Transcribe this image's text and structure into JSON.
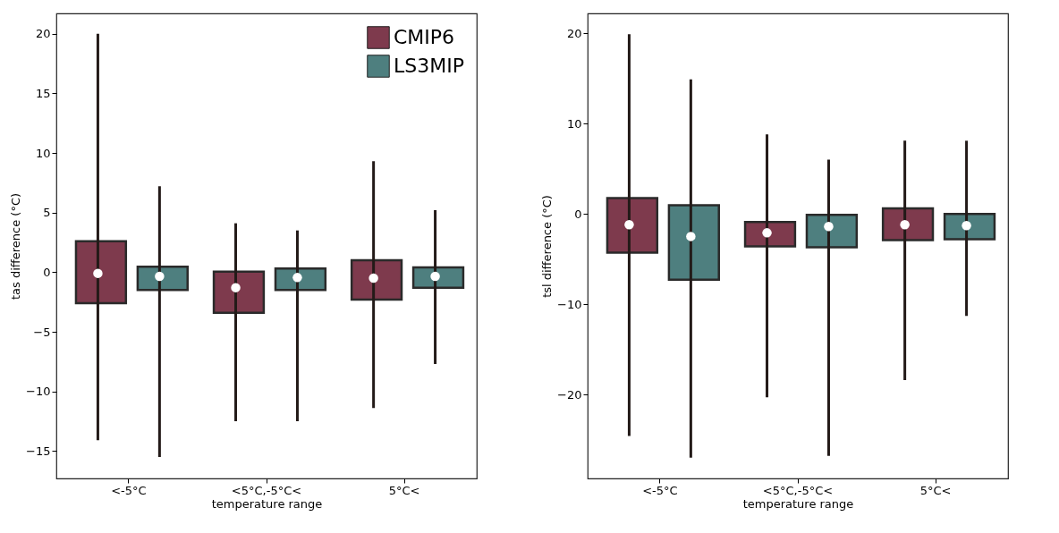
{
  "chart_data": [
    {
      "type": "box",
      "xlabel": "temperature range",
      "ylabel": "tas difference (°C)",
      "categories": [
        "<-5°C",
        "<5°C,-5°C<",
        "5°C<"
      ],
      "ylim": [
        -17.3,
        21.7
      ],
      "yticks": [
        {
          "value": -15,
          "label": "−15"
        },
        {
          "value": -10,
          "label": "−10"
        },
        {
          "value": -5,
          "label": "−5"
        },
        0,
        5,
        10,
        15,
        20
      ],
      "legend": "top right",
      "series": [
        {
          "name": "CMIP6",
          "color": "#7e3a4d",
          "boxes": [
            {
              "low": -14.1,
              "q1": -2.6,
              "median": -0.1,
              "q3": 2.6,
              "high": 20
            },
            {
              "low": -12.5,
              "q1": -3.4,
              "median": -1.3,
              "q3": 0.05,
              "high": 4.1
            },
            {
              "low": -11.4,
              "q1": -2.3,
              "median": -0.5,
              "q3": 1.0,
              "high": 9.3
            }
          ]
        },
        {
          "name": "LS3MIP",
          "color": "#4e7f7f",
          "boxes": [
            {
              "low": -15.5,
              "q1": -1.5,
              "median": -0.35,
              "q3": 0.45,
              "high": 7.2
            },
            {
              "low": -12.5,
              "q1": -1.5,
              "median": -0.45,
              "q3": 0.3,
              "high": 3.5
            },
            {
              "low": -7.7,
              "q1": -1.3,
              "median": -0.35,
              "q3": 0.4,
              "high": 5.2
            }
          ]
        }
      ]
    },
    {
      "type": "box",
      "xlabel": "temperature range",
      "ylabel": "tsl difference (°C)",
      "categories": [
        "<-5°C",
        "<5°C,-5°C<",
        "5°C<"
      ],
      "ylim": [
        -29.3,
        22.2
      ],
      "yticks": [
        {
          "value": -20,
          "label": "−20"
        },
        {
          "value": -10,
          "label": "−10"
        },
        0,
        10,
        20
      ],
      "series": [
        {
          "color": "#7e3a4d",
          "boxes": [
            {
              "low": -24.6,
              "q1": -4.3,
              "median": -1.2,
              "q3": 1.75,
              "high": 19.9
            },
            {
              "low": -20.3,
              "q1": -3.6,
              "median": -2.1,
              "q3": -0.9,
              "high": 8.8
            },
            {
              "low": -18.4,
              "q1": -2.9,
              "median": -1.2,
              "q3": 0.6,
              "high": 8.1
            }
          ]
        },
        {
          "color": "#4e7f7f",
          "boxes": [
            {
              "low": -27.0,
              "q1": -7.3,
              "median": -2.5,
              "q3": 0.95,
              "high": 14.9
            },
            {
              "low": -26.8,
              "q1": -3.7,
              "median": -1.4,
              "q3": -0.1,
              "high": 6.0
            },
            {
              "low": -11.3,
              "q1": -2.8,
              "median": -1.3,
              "q3": 0.0,
              "high": 8.1
            }
          ]
        }
      ]
    }
  ]
}
